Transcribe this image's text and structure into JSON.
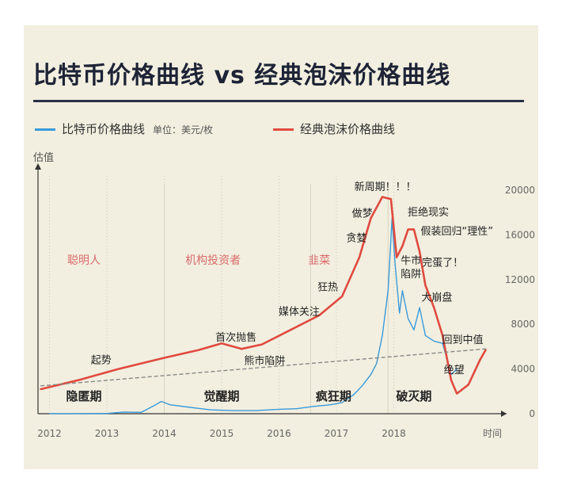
{
  "title": "比特币价格曲线 vs 经典泡沫价格曲线",
  "legend": {
    "btc_label": "比特币价格曲线",
    "unit_label": "单位：美元/枚",
    "bubble_label": "经典泡沫价格曲线"
  },
  "colors": {
    "btc": "#3a9ad9",
    "bubble": "#e04a3f",
    "trend": "#888888",
    "grid": "#cfcab8"
  },
  "chart_data": {
    "type": "line",
    "title": "比特币价格曲线 vs 经典泡沫价格曲线",
    "ylabel": "估值",
    "xlabel": "时间",
    "x_ticks": [
      "2012",
      "2013",
      "2014",
      "2015",
      "2016",
      "2017",
      "2018"
    ],
    "y_ticks": [
      "0",
      "4000",
      "8000",
      "12000",
      "16000",
      "20000"
    ],
    "ylim": [
      0,
      20000
    ],
    "xlim": [
      2011.8,
      2019.8
    ],
    "grid": "vertical dotted",
    "legend_position": "top",
    "series": [
      {
        "name": "比特币价格曲线",
        "x": [
          2012.0,
          2012.5,
          2013.0,
          2013.3,
          2013.6,
          2013.85,
          2013.95,
          2014.1,
          2014.4,
          2014.8,
          2015.2,
          2015.6,
          2016.0,
          2016.3,
          2016.6,
          2016.9,
          2017.1,
          2017.3,
          2017.45,
          2017.6,
          2017.7,
          2017.8,
          2017.9,
          2017.97,
          2018.02,
          2018.1,
          2018.15,
          2018.25,
          2018.35,
          2018.45,
          2018.55,
          2018.7,
          2018.85,
          2019.0,
          2019.1
        ],
        "y": [
          10,
          10,
          20,
          150,
          120,
          800,
          1100,
          800,
          600,
          350,
          280,
          280,
          400,
          450,
          650,
          800,
          1000,
          1700,
          2500,
          3500,
          4500,
          7000,
          11000,
          17500,
          13500,
          9000,
          11000,
          8500,
          7500,
          9500,
          7000,
          6500,
          6300,
          3500,
          4000
        ]
      },
      {
        "name": "经典泡沫价格曲线",
        "x": [
          2011.85,
          2012.5,
          2013.2,
          2014.0,
          2014.6,
          2015.0,
          2015.35,
          2015.7,
          2016.2,
          2016.7,
          2017.1,
          2017.4,
          2017.6,
          2017.8,
          2017.95,
          2018.05,
          2018.15,
          2018.25,
          2018.35,
          2018.45,
          2018.55,
          2018.7,
          2018.85,
          2019.0,
          2019.1,
          2019.3,
          2019.5,
          2019.6
        ],
        "y": [
          2200,
          3000,
          4000,
          5000,
          5700,
          6300,
          5800,
          6200,
          7500,
          8800,
          10500,
          14000,
          17500,
          19400,
          19200,
          14000,
          15000,
          16500,
          16500,
          14500,
          11500,
          9500,
          7000,
          3000,
          1800,
          2600,
          4800,
          5700
        ]
      },
      {
        "name": "",
        "x": [
          2011.85,
          2019.6
        ],
        "y": [
          2500,
          5800
        ]
      }
    ],
    "phases": [
      {
        "label": "隐匿期",
        "x": 2012.6
      },
      {
        "label": "觉醒期",
        "x": 2015.0
      },
      {
        "label": "疯狂期",
        "x": 2016.95
      },
      {
        "label": "破灭期",
        "x": 2018.35
      }
    ],
    "groups": [
      {
        "label": "聪明人",
        "x": 2012.6
      },
      {
        "label": "机构投资者",
        "x": 2014.85
      },
      {
        "label": "韭菜",
        "x": 2016.7
      }
    ],
    "annotations": [
      {
        "label": "起势",
        "x": 2012.9,
        "y": 4800
      },
      {
        "label": "首次抛售",
        "x": 2015.25,
        "y": 6800
      },
      {
        "label": "熊市陷阱",
        "x": 2015.75,
        "y": 4700
      },
      {
        "label": "媒体关注",
        "x": 2016.35,
        "y": 9100
      },
      {
        "label": "狂热",
        "x": 2016.85,
        "y": 11300
      },
      {
        "label": "贪婪",
        "x": 2017.35,
        "y": 15700
      },
      {
        "label": "做梦",
        "x": 2017.45,
        "y": 17900
      },
      {
        "label": "新周期！！！",
        "x": 2017.85,
        "y": 20300
      },
      {
        "label": "拒绝现实",
        "x": 2018.6,
        "y": 18000
      },
      {
        "label": "假装回归“理性”",
        "x": 2019.1,
        "y": 16300
      },
      {
        "label": "牛市",
        "x": 2018.3,
        "y": 13700
      },
      {
        "label": "陷阱",
        "x": 2018.3,
        "y": 12500
      },
      {
        "label": "完蛋了！",
        "x": 2018.85,
        "y": 13500
      },
      {
        "label": "大崩盘",
        "x": 2018.75,
        "y": 10400
      },
      {
        "label": "回到中值",
        "x": 2019.2,
        "y": 6600
      },
      {
        "label": "绝望",
        "x": 2019.05,
        "y": 3900
      }
    ]
  }
}
